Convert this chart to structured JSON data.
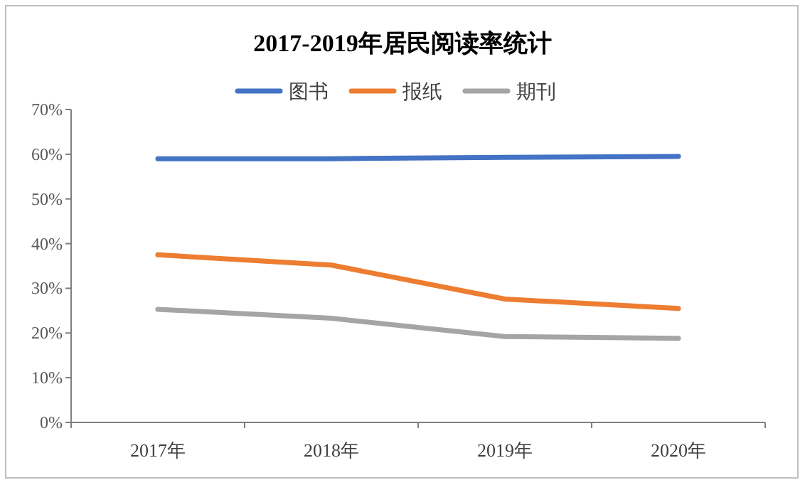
{
  "chart_data": {
    "type": "line",
    "title": "2017-2019年居民阅读率统计",
    "categories": [
      "2017年",
      "2018年",
      "2019年",
      "2020年"
    ],
    "series": [
      {
        "name": "图书",
        "color": "#4472c4",
        "values": [
          59.0,
          59.0,
          59.3,
          59.5
        ]
      },
      {
        "name": "报纸",
        "color": "#ed7d31",
        "values": [
          37.5,
          35.2,
          27.6,
          25.5
        ]
      },
      {
        "name": "期刊",
        "color": "#a5a5a5",
        "values": [
          25.3,
          23.3,
          19.2,
          18.8
        ]
      }
    ],
    "ylim": [
      0,
      70
    ],
    "yticks": [
      {
        "value": 0,
        "label": "0%"
      },
      {
        "value": 10,
        "label": "10%"
      },
      {
        "value": 20,
        "label": "20%"
      },
      {
        "value": 30,
        "label": "30%"
      },
      {
        "value": 40,
        "label": "40%"
      },
      {
        "value": 50,
        "label": "50%"
      },
      {
        "value": 60,
        "label": "60%"
      },
      {
        "value": 70,
        "label": "70%"
      }
    ],
    "legend": "top",
    "grid": false,
    "marker": "none",
    "line_style": "solid"
  }
}
